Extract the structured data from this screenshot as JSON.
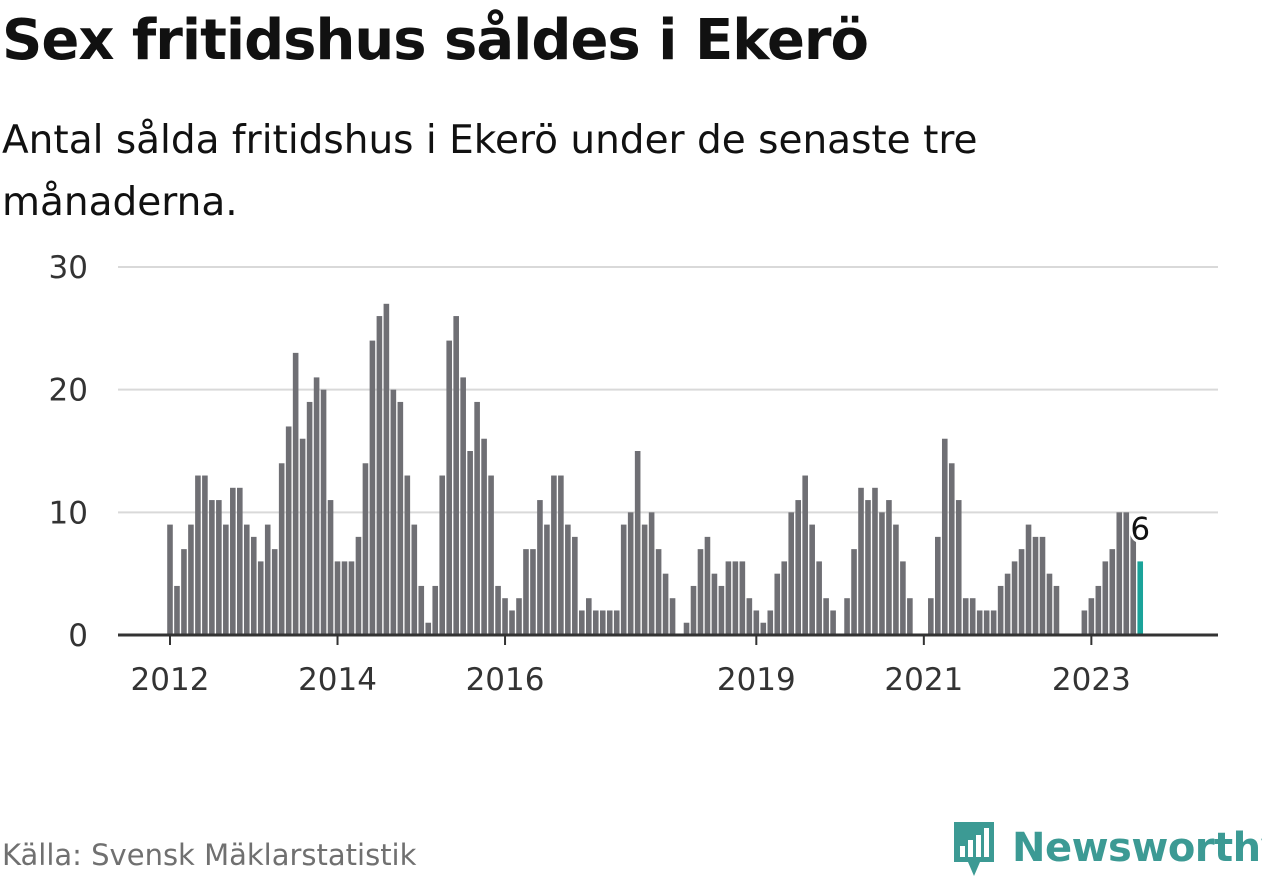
{
  "title": "Sex fritidshus såldes i Ekerö",
  "subtitle": "Antal sålda fritidshus i Ekerö under de senaste tre månaderna.",
  "source": "Källa: Svensk Mäklarstatistik",
  "brand": {
    "name": "Newsworthy",
    "icon": "newsworthy-bar-chart-icon",
    "color": "#3c9a94"
  },
  "colors": {
    "bar": "#6f6f74",
    "highlight": "#1aa39a",
    "grid": "#d9d9d9",
    "axis": "#333333"
  },
  "chart_data": {
    "type": "bar",
    "title": "Sex fritidshus såldes i Ekerö",
    "ylim": [
      0,
      30
    ],
    "yticks": [
      0,
      10,
      20,
      30
    ],
    "xtick_labels": [
      "2012",
      "2014",
      "2016",
      "2019",
      "2021",
      "2023"
    ],
    "xtick_positions": [
      "2012-01",
      "2014-01",
      "2016-01",
      "2019-01",
      "2021-01",
      "2023-01"
    ],
    "x_start": "2012-01",
    "grid": true,
    "highlight_label": "6",
    "values": [
      9,
      4,
      7,
      9,
      13,
      13,
      11,
      11,
      9,
      12,
      12,
      9,
      8,
      6,
      9,
      7,
      14,
      17,
      23,
      16,
      19,
      21,
      20,
      11,
      6,
      6,
      6,
      8,
      14,
      24,
      26,
      27,
      20,
      19,
      13,
      9,
      4,
      1,
      4,
      13,
      24,
      26,
      21,
      15,
      19,
      16,
      13,
      4,
      3,
      2,
      3,
      7,
      7,
      11,
      9,
      13,
      13,
      9,
      8,
      2,
      3,
      2,
      2,
      2,
      2,
      9,
      10,
      15,
      9,
      10,
      7,
      5,
      3,
      0,
      1,
      4,
      7,
      8,
      5,
      4,
      6,
      6,
      6,
      3,
      2,
      1,
      2,
      5,
      6,
      10,
      11,
      13,
      9,
      6,
      3,
      2,
      0,
      3,
      7,
      12,
      11,
      12,
      10,
      11,
      9,
      6,
      3,
      0,
      0,
      3,
      8,
      16,
      14,
      11,
      3,
      3,
      2,
      2,
      2,
      4,
      5,
      6,
      7,
      9,
      8,
      8,
      5,
      4,
      0,
      0,
      0,
      2,
      3,
      4,
      6,
      7,
      10,
      10,
      9,
      6
    ]
  }
}
